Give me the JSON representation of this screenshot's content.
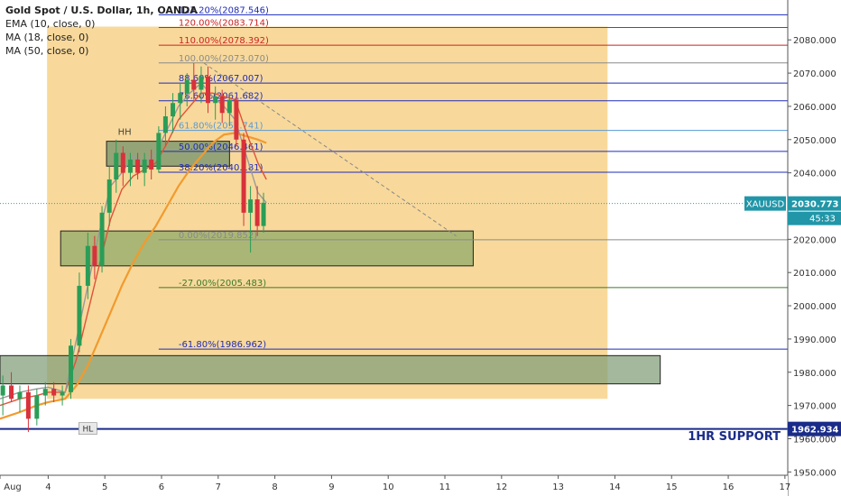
{
  "legend": {
    "title": "Gold Spot / U.S. Dollar, 1h, OANDA",
    "indicators": [
      "EMA (10, close, 0)",
      "MA (18, close, 0)",
      "MA (50, close, 0)"
    ]
  },
  "colors": {
    "zone": "#f7d590",
    "box": "#8aa866",
    "fib_blue": "#1e2bb8",
    "fib_red": "#cc2222",
    "fib_green": "#3b7a2a",
    "fib_gray": "#8a8a8a",
    "fib_lightblue": "#5a9ad4",
    "support": "#1a2c8a",
    "ema": "#9a9a9a",
    "ma18": "#e0523a",
    "ma50": "#f29a2e",
    "bull": "#2a9d57",
    "bear": "#d8323a",
    "price_label": "#3a7ec8"
  },
  "chart_data": {
    "type": "candlestick",
    "symbol": "XAUUSD",
    "last_price": 2030.773,
    "countdown": "45:33",
    "ylim": [
      1949,
      2092
    ],
    "y_ticks": [
      1950,
      1960,
      1970,
      1980,
      1990,
      2000,
      2010,
      2020,
      2030,
      2040,
      2050,
      2060,
      2070,
      2080
    ],
    "y_tick_labels": [
      "1950.000",
      "1960.000",
      "1970.000",
      "1980.000",
      "1990.000",
      "2000.000",
      "2010.000",
      "2020.000",
      "2030.000",
      "2040.000",
      "2050.000",
      "2060.000",
      "2070.000",
      "2080.000"
    ],
    "xlim": [
      3.15,
      17.05
    ],
    "x_ticks": [
      3.15,
      4,
      5,
      6,
      7,
      8,
      9,
      10,
      11,
      12,
      13,
      14,
      15,
      16,
      17
    ],
    "x_tick_labels": [
      "Aug",
      "4",
      "5",
      "6",
      "7",
      "8",
      "9",
      "10",
      "11",
      "12",
      "13",
      "14",
      "15",
      "16",
      "17"
    ],
    "fib_levels": [
      {
        "label": "127.20%(2087.546)",
        "value": 2087.546,
        "color": "#1e2bb8"
      },
      {
        "label": "120.00%(2083.714)",
        "value": 2083.714,
        "color": "#cc2222"
      },
      {
        "label": "110.00%(2078.392)",
        "value": 2078.392,
        "color": "#cc2222"
      },
      {
        "label": "100.00%(2073.070)",
        "value": 2073.07,
        "color": "#8a8a8a"
      },
      {
        "label": "88.60%(2067.007)",
        "value": 2067.007,
        "color": "#1e2bb8"
      },
      {
        "label": "78.60%(2061.682)",
        "value": 2061.682,
        "color": "#1e2bb8"
      },
      {
        "label": "61.80%(2052.741)",
        "value": 2052.741,
        "color": "#5a9ad4"
      },
      {
        "label": "50.00%(2046.461)",
        "value": 2046.461,
        "color": "#1e2bb8"
      },
      {
        "label": "38.20%(2040.181)",
        "value": 2040.181,
        "color": "#1e2bb8"
      },
      {
        "label": "0.00%(2019.852)",
        "value": 2019.852,
        "color": "#8a8a8a"
      },
      {
        "label": "-27.00%(2005.483)",
        "value": 2005.483,
        "color": "#3b7a2a"
      },
      {
        "label": "-61.80%(1986.962)",
        "value": 1986.962,
        "color": "#1e2bb8"
      }
    ],
    "support": {
      "label": "1HR SUPPORT",
      "value": 1962.934,
      "price_label": "1962.934",
      "marker": "HL"
    },
    "hh_marker": "HH",
    "zones": [
      {
        "x": [
          3.98,
          13.87
        ],
        "y": [
          1972,
          2084
        ]
      }
    ],
    "boxes": [
      {
        "x": [
          5.03,
          7.2
        ],
        "y": [
          2042,
          2049.5
        ],
        "color": "#6f8f6a"
      },
      {
        "x": [
          4.22,
          11.5
        ],
        "y": [
          2012,
          2022.5
        ],
        "color": "#8aa866"
      },
      {
        "x": [
          3.15,
          14.8
        ],
        "y": [
          1976.5,
          1985
        ],
        "color": "#7f9c77"
      }
    ],
    "trendline": {
      "x": [
        6.75,
        11.2
      ],
      "y": [
        2073,
        2021
      ]
    },
    "ema_10": {
      "x": [
        3.15,
        3.5,
        3.8,
        4.0,
        4.3,
        4.5,
        4.7,
        4.9,
        5.1,
        5.3,
        5.5,
        5.7,
        5.9,
        6.1,
        6.3,
        6.5,
        6.7,
        6.9,
        7.1,
        7.3,
        7.5,
        7.7,
        7.85
      ],
      "y": [
        1972,
        1974,
        1975,
        1975.5,
        1974,
        1990,
        2006,
        2022,
        2036,
        2040,
        2045,
        2043,
        2046,
        2053,
        2060,
        2064,
        2067,
        2063,
        2060,
        2056,
        2045,
        2034,
        2031
      ]
    },
    "ma_18": {
      "x": [
        3.15,
        3.5,
        3.8,
        4.0,
        4.3,
        4.5,
        4.7,
        4.9,
        5.1,
        5.3,
        5.5,
        5.7,
        5.9,
        6.1,
        6.3,
        6.5,
        6.7,
        6.9,
        7.1,
        7.3,
        7.5,
        7.7,
        7.85
      ],
      "y": [
        1970,
        1972,
        1973,
        1974,
        1974,
        1984,
        1998,
        2012,
        2026,
        2035,
        2039,
        2041,
        2043,
        2049,
        2056,
        2060,
        2064,
        2064,
        2063,
        2062,
        2052,
        2043,
        2038
      ]
    },
    "ma_50": {
      "x": [
        3.15,
        3.5,
        3.8,
        4.0,
        4.3,
        4.5,
        4.7,
        4.9,
        5.1,
        5.3,
        5.5,
        5.7,
        5.9,
        6.1,
        6.3,
        6.5,
        6.7,
        6.9,
        7.1,
        7.3,
        7.5,
        7.7,
        7.85
      ],
      "y": [
        1966,
        1968,
        1970,
        1971,
        1972,
        1976,
        1982,
        1990,
        1998,
        2006,
        2013,
        2019,
        2024,
        2030,
        2036,
        2041,
        2045,
        2049,
        2051.5,
        2052,
        2051,
        2050,
        2049
      ]
    },
    "candles": [
      {
        "x": 3.2,
        "o": 1973,
        "h": 1979,
        "l": 1967,
        "c": 1976
      },
      {
        "x": 3.35,
        "o": 1976,
        "h": 1980,
        "l": 1971,
        "c": 1972
      },
      {
        "x": 3.5,
        "o": 1972,
        "h": 1976,
        "l": 1968,
        "c": 1974
      },
      {
        "x": 3.65,
        "o": 1974,
        "h": 1976,
        "l": 1962,
        "c": 1966
      },
      {
        "x": 3.8,
        "o": 1966,
        "h": 1975,
        "l": 1964,
        "c": 1973
      },
      {
        "x": 3.95,
        "o": 1973,
        "h": 1977,
        "l": 1970,
        "c": 1975
      },
      {
        "x": 4.1,
        "o": 1975,
        "h": 1977,
        "l": 1971,
        "c": 1973
      },
      {
        "x": 4.25,
        "o": 1973,
        "h": 1976,
        "l": 1970,
        "c": 1974
      },
      {
        "x": 4.4,
        "o": 1974,
        "h": 1990,
        "l": 1972,
        "c": 1988
      },
      {
        "x": 4.55,
        "o": 1988,
        "h": 2010,
        "l": 1986,
        "c": 2006
      },
      {
        "x": 4.7,
        "o": 2006,
        "h": 2022,
        "l": 2002,
        "c": 2018
      },
      {
        "x": 4.82,
        "o": 2018,
        "h": 2021,
        "l": 2008,
        "c": 2012
      },
      {
        "x": 4.95,
        "o": 2012,
        "h": 2030,
        "l": 2010,
        "c": 2028
      },
      {
        "x": 5.08,
        "o": 2028,
        "h": 2042,
        "l": 2024,
        "c": 2038
      },
      {
        "x": 5.2,
        "o": 2038,
        "h": 2050,
        "l": 2034,
        "c": 2046
      },
      {
        "x": 5.32,
        "o": 2046,
        "h": 2048,
        "l": 2036,
        "c": 2040
      },
      {
        "x": 5.45,
        "o": 2040,
        "h": 2046,
        "l": 2036,
        "c": 2044
      },
      {
        "x": 5.58,
        "o": 2044,
        "h": 2046,
        "l": 2038,
        "c": 2040
      },
      {
        "x": 5.7,
        "o": 2040,
        "h": 2046,
        "l": 2036,
        "c": 2044
      },
      {
        "x": 5.82,
        "o": 2044,
        "h": 2047,
        "l": 2038,
        "c": 2041
      },
      {
        "x": 5.95,
        "o": 2041,
        "h": 2054,
        "l": 2040,
        "c": 2052
      },
      {
        "x": 6.07,
        "o": 2052,
        "h": 2060,
        "l": 2048,
        "c": 2057
      },
      {
        "x": 6.2,
        "o": 2057,
        "h": 2064,
        "l": 2052,
        "c": 2061
      },
      {
        "x": 6.33,
        "o": 2061,
        "h": 2067,
        "l": 2056,
        "c": 2064
      },
      {
        "x": 6.45,
        "o": 2064,
        "h": 2070,
        "l": 2060,
        "c": 2068
      },
      {
        "x": 6.57,
        "o": 2068,
        "h": 2073,
        "l": 2062,
        "c": 2065
      },
      {
        "x": 6.7,
        "o": 2065,
        "h": 2072,
        "l": 2061,
        "c": 2069
      },
      {
        "x": 6.82,
        "o": 2069,
        "h": 2072,
        "l": 2058,
        "c": 2061
      },
      {
        "x": 6.95,
        "o": 2061,
        "h": 2066,
        "l": 2056,
        "c": 2063
      },
      {
        "x": 7.07,
        "o": 2063,
        "h": 2065,
        "l": 2055,
        "c": 2058
      },
      {
        "x": 7.2,
        "o": 2058,
        "h": 2064,
        "l": 2054,
        "c": 2062
      },
      {
        "x": 7.32,
        "o": 2062,
        "h": 2063,
        "l": 2048,
        "c": 2050
      },
      {
        "x": 7.45,
        "o": 2050,
        "h": 2052,
        "l": 2024,
        "c": 2028
      },
      {
        "x": 7.57,
        "o": 2028,
        "h": 2036,
        "l": 2016,
        "c": 2032
      },
      {
        "x": 7.69,
        "o": 2032,
        "h": 2036,
        "l": 2021,
        "c": 2024
      },
      {
        "x": 7.8,
        "o": 2024,
        "h": 2034,
        "l": 2022,
        "c": 2031
      }
    ]
  }
}
